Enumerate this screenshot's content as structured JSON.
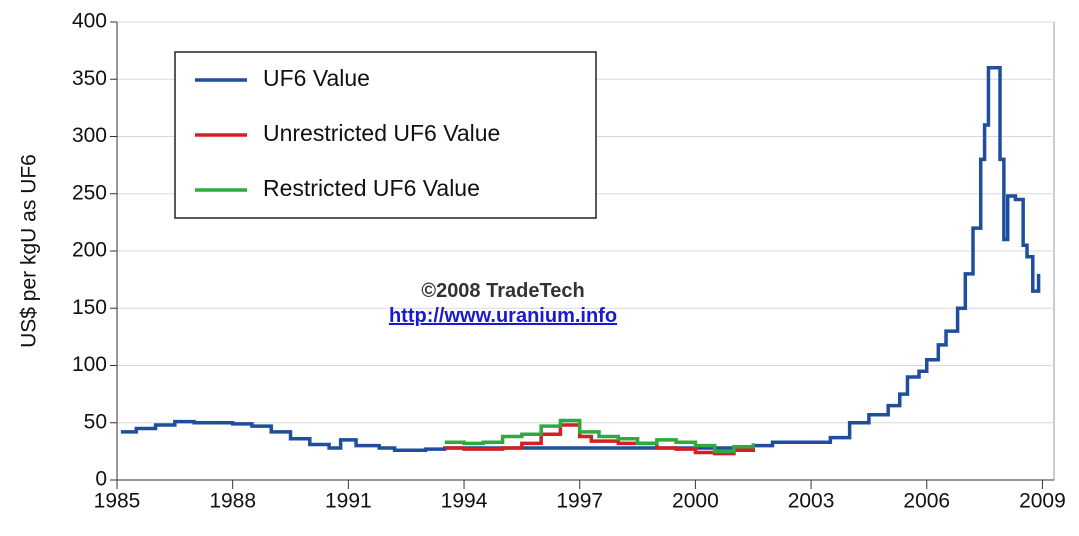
{
  "chart_data": {
    "type": "line",
    "ylabel": "US$ per kgU as UF6",
    "annotation": "©2008 TradeTech",
    "link": "http://www.uranium.info",
    "xlim": [
      1985,
      2009.3
    ],
    "ylim": [
      0,
      400
    ],
    "xticks": [
      1985,
      1988,
      1991,
      1994,
      1997,
      2000,
      2003,
      2006,
      2009
    ],
    "yticks": [
      0,
      50,
      100,
      150,
      200,
      250,
      300,
      350,
      400
    ],
    "grid": true,
    "step": true,
    "legend": "upper-left",
    "series": [
      {
        "name": "UF6 Value",
        "color": "#1f4e9c",
        "x": [
          1985.1,
          1985.5,
          1986,
          1986.5,
          1987,
          1988,
          1988.5,
          1989,
          1989.5,
          1990,
          1990.5,
          1990.8,
          1991.2,
          1991.8,
          1992.2,
          1993,
          1993.5,
          2001.5,
          2002,
          2003,
          2003.5,
          2004,
          2004.5,
          2005,
          2005.3,
          2005.5,
          2005.8,
          2006,
          2006.3,
          2006.5,
          2006.8,
          2007,
          2007.2,
          2007.4,
          2007.5,
          2007.6,
          2007.8,
          2007.9,
          2008,
          2008.1,
          2008.3,
          2008.5,
          2008.6,
          2008.75,
          2008.9
        ],
        "values": [
          42,
          45,
          48,
          51,
          50,
          49,
          47,
          42,
          36,
          31,
          28,
          35,
          30,
          28,
          26,
          27,
          28,
          30,
          33,
          33,
          37,
          50,
          57,
          65,
          75,
          90,
          95,
          105,
          118,
          130,
          150,
          180,
          220,
          280,
          310,
          360,
          360,
          280,
          210,
          248,
          245,
          205,
          195,
          165,
          180
        ]
      },
      {
        "name": "Unrestricted UF6 Value",
        "color": "#d42020",
        "x": [
          1993.5,
          1994,
          1995,
          1995.5,
          1996,
          1996.5,
          1997,
          1997.3,
          1998,
          1999,
          1999.5,
          2000,
          2000.5,
          2001,
          2001.5
        ],
        "values": [
          28,
          27,
          28,
          32,
          40,
          48,
          38,
          34,
          32,
          28,
          27,
          24,
          23,
          26,
          30
        ]
      },
      {
        "name": "Restricted UF6 Value",
        "color": "#2eab3c",
        "x": [
          1993.5,
          1994,
          1994.5,
          1995,
          1995.5,
          1996,
          1996.5,
          1997,
          1997.5,
          1998,
          1998.5,
          1999,
          1999.5,
          2000,
          2000.5,
          2001,
          2001.5
        ],
        "values": [
          33,
          32,
          33,
          38,
          40,
          47,
          52,
          42,
          38,
          36,
          32,
          35,
          33,
          30,
          25,
          29,
          32
        ]
      }
    ]
  }
}
